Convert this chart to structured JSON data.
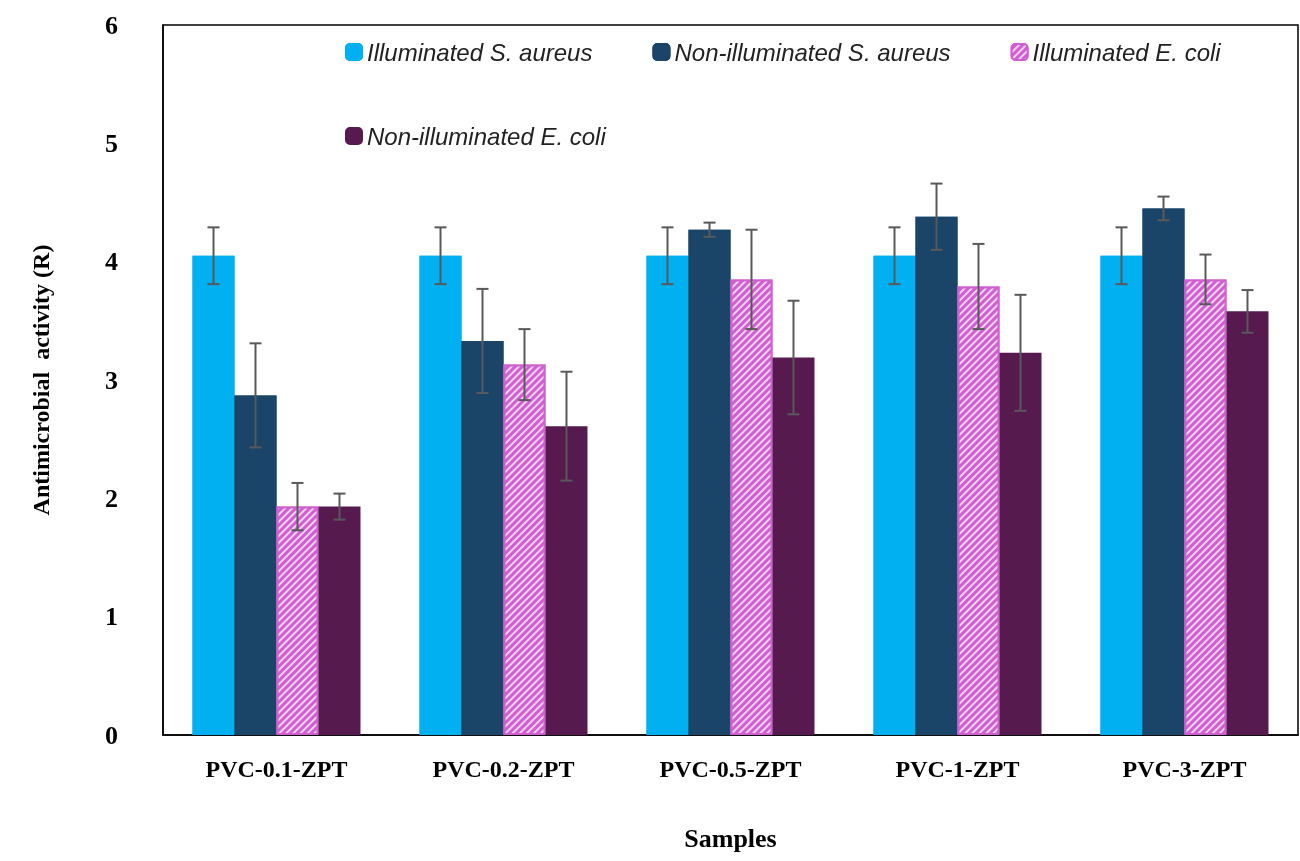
{
  "chart_data": {
    "type": "bar",
    "xlabel": "Samples",
    "ylabel": "Antimicrobial  activity (R)",
    "categories": [
      "PVC-0.1-ZPT",
      "PVC-0.2-ZPT",
      "PVC-0.5-ZPT",
      "PVC-1-ZPT",
      "PVC-3-ZPT"
    ],
    "series": [
      {
        "name": "Illuminated S. aureus",
        "color": "#00b0f0",
        "values": [
          4.05,
          4.05,
          4.05,
          4.05,
          4.05
        ],
        "errors": [
          0.24,
          0.24,
          0.24,
          0.24,
          0.24
        ]
      },
      {
        "name": "Non-illuminated S. aureus",
        "color": "#1a4468",
        "values": [
          2.87,
          3.33,
          4.27,
          4.38,
          4.45
        ],
        "errors": [
          0.44,
          0.44,
          0.06,
          0.28,
          0.1
        ]
      },
      {
        "name": "Illuminated E. coli",
        "color": "#d060d0",
        "values": [
          1.93,
          3.13,
          3.85,
          3.79,
          3.85
        ],
        "errors": [
          0.2,
          0.3,
          0.42,
          0.36,
          0.21
        ]
      },
      {
        "name": "Non-illuminated E. coli",
        "color": "#561a4e",
        "values": [
          1.93,
          2.61,
          3.19,
          3.23,
          3.58
        ],
        "errors": [
          0.11,
          0.46,
          0.48,
          0.49,
          0.18
        ]
      }
    ],
    "ylim": [
      0,
      6
    ],
    "yticks": [
      0,
      1,
      2,
      3,
      4,
      5,
      6
    ],
    "grid": false,
    "legend": "top"
  }
}
